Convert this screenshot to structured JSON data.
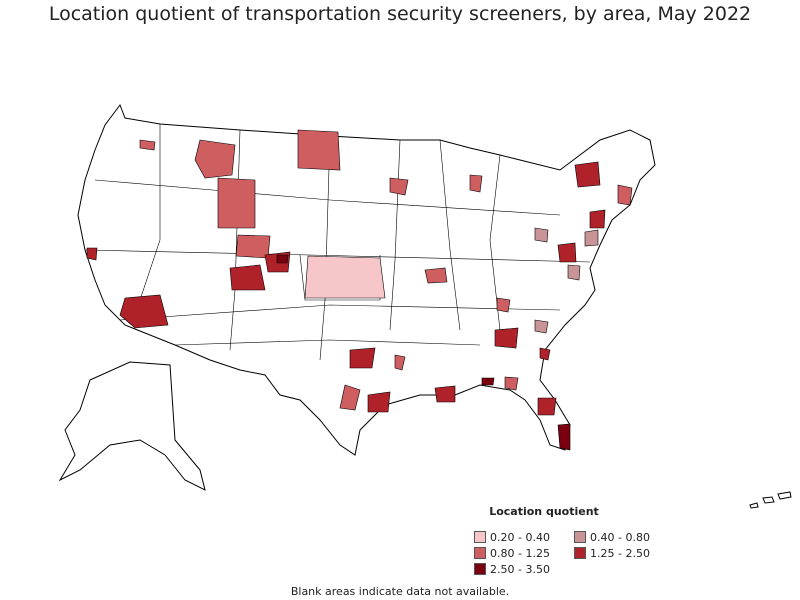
{
  "title": "Location quotient of transportation security screeners, by area, May 2022",
  "legend": {
    "title": "Location quotient",
    "items": [
      {
        "label": "0.20 - 0.40",
        "color": "#f7c6c8"
      },
      {
        "label": "0.40 - 0.80",
        "color": "#c99496"
      },
      {
        "label": "0.80 - 1.25",
        "color": "#cf5e60"
      },
      {
        "label": "1.25 - 2.50",
        "color": "#b0222a"
      },
      {
        "label": "2.50 - 3.50",
        "color": "#7a0010"
      }
    ]
  },
  "note": "Blank areas indicate data not available.",
  "colors": {
    "outline": "#000000",
    "land": "#ffffff"
  }
}
